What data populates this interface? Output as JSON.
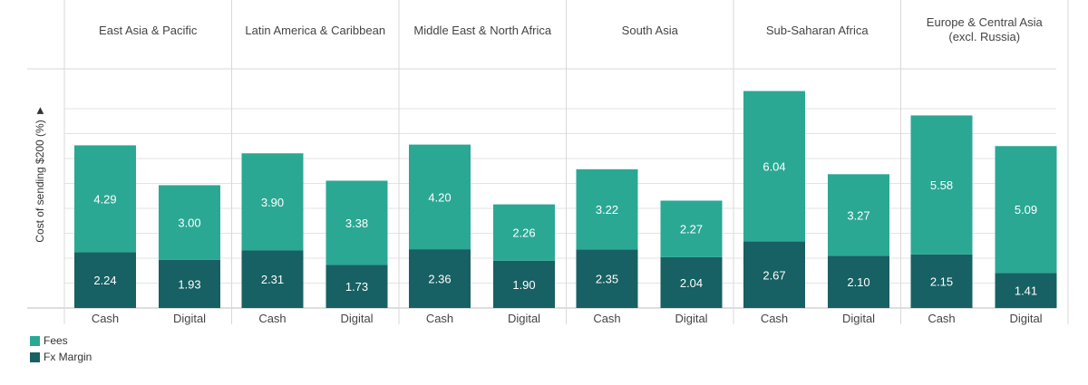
{
  "colors": {
    "fees": "#2aa894",
    "fx": "#176063",
    "grid": "#e3e3e3",
    "divider": "#d9d9d9"
  },
  "chart_data": {
    "type": "bar",
    "stacked": true,
    "ylabel": "Cost of sending $200 (%)",
    "ylabel_icon": "sort-icon",
    "groups": [
      {
        "title": [
          "East Asia & Pacific"
        ],
        "categories": [
          "Cash",
          "Digital"
        ],
        "fees": [
          4.29,
          3.0
        ],
        "fx_margin": [
          2.24,
          1.93
        ]
      },
      {
        "title": [
          "Latin America & Caribbean"
        ],
        "categories": [
          "Cash",
          "Digital"
        ],
        "fees": [
          3.9,
          3.38
        ],
        "fx_margin": [
          2.31,
          1.73
        ]
      },
      {
        "title": [
          "Middle East & North Africa"
        ],
        "categories": [
          "Cash",
          "Digital"
        ],
        "fees": [
          4.2,
          2.26
        ],
        "fx_margin": [
          2.36,
          1.9
        ]
      },
      {
        "title": [
          "South Asia"
        ],
        "categories": [
          "Cash",
          "Digital"
        ],
        "fees": [
          3.22,
          2.27
        ],
        "fx_margin": [
          2.35,
          2.04
        ]
      },
      {
        "title": [
          "Sub-Saharan Africa"
        ],
        "categories": [
          "Cash",
          "Digital"
        ],
        "fees": [
          6.04,
          3.27
        ],
        "fx_margin": [
          2.67,
          2.1
        ]
      },
      {
        "title": [
          "Europe & Central Asia",
          "(excl. Russia)"
        ],
        "categories": [
          "Cash",
          "Digital"
        ],
        "fees": [
          5.58,
          5.09
        ],
        "fx_margin": [
          2.15,
          1.41
        ]
      }
    ],
    "series": [
      {
        "name": "Fees",
        "key": "fees"
      },
      {
        "name": "Fx Margin",
        "key": "fx_margin"
      }
    ],
    "value_labels": [
      {
        "fees": [
          "4.29",
          "3.00"
        ],
        "fx_margin": [
          "2.24",
          "1.93"
        ]
      },
      {
        "fees": [
          "3.90",
          "3.38"
        ],
        "fx_margin": [
          "2.31",
          "1.73"
        ]
      },
      {
        "fees": [
          "4.20",
          "2.26"
        ],
        "fx_margin": [
          "2.36",
          "1.90"
        ]
      },
      {
        "fees": [
          "3.22",
          "2.27"
        ],
        "fx_margin": [
          "2.35",
          "2.04"
        ]
      },
      {
        "fees": [
          "6.04",
          "3.27"
        ],
        "fx_margin": [
          "2.67",
          "2.10"
        ]
      },
      {
        "fees": [
          "5.58",
          "5.09"
        ],
        "fx_margin": [
          "2.15",
          "1.41"
        ]
      }
    ],
    "ylim": [
      0,
      9.2
    ],
    "grid": true,
    "legend_position": "bottom-left"
  },
  "legend": {
    "fees": "Fees",
    "fx": "Fx Margin"
  }
}
